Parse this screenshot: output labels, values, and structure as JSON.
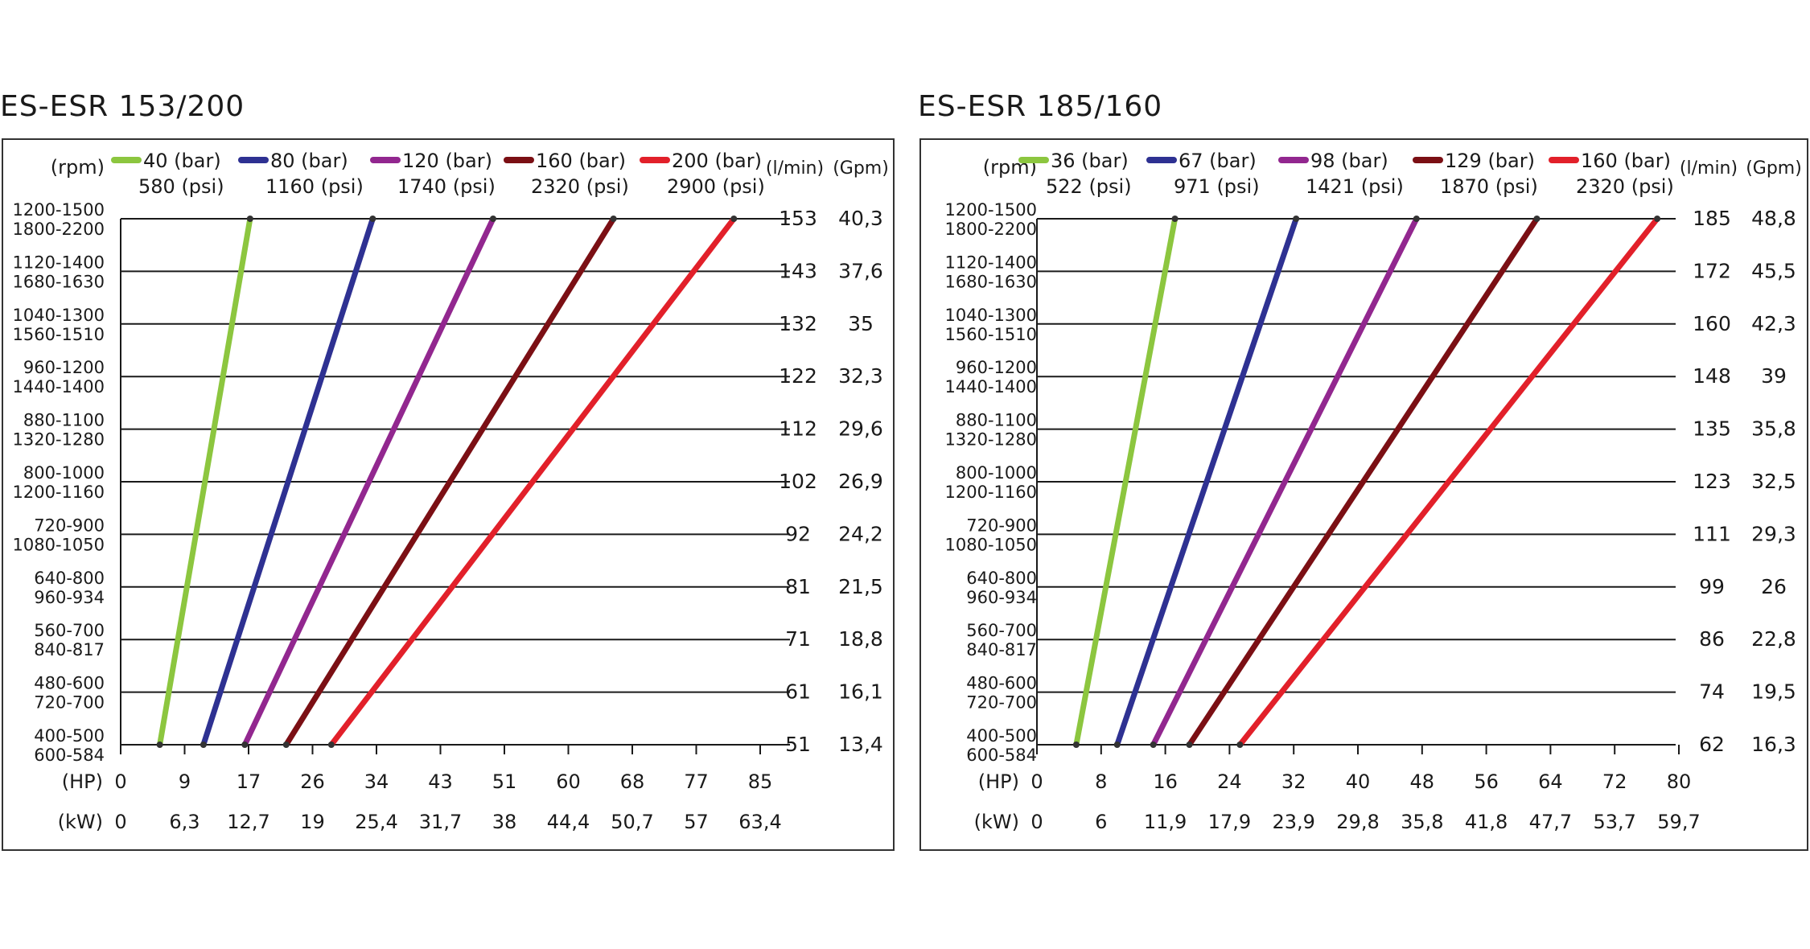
{
  "chart_data": [
    {
      "type": "line",
      "title": "ES-ESR 153/200",
      "col_headers": {
        "rpm": "(rpm)",
        "lpm": "(l/min)",
        "gpm": "(Gpm)",
        "hp": "(HP)",
        "kw": "(kW)"
      },
      "rpm_labels": [
        [
          "400-500",
          "600-584"
        ],
        [
          "480-600",
          "720-700"
        ],
        [
          "560-700",
          "840-817"
        ],
        [
          "640-800",
          "960-934"
        ],
        [
          "720-900",
          "1080-1050"
        ],
        [
          "800-1000",
          "1200-1160"
        ],
        [
          "880-1100",
          "1320-1280"
        ],
        [
          "960-1200",
          "1440-1400"
        ],
        [
          "1040-1300",
          "1560-1510"
        ],
        [
          "1120-1400",
          "1680-1630"
        ],
        [
          "1200-1500",
          "1800-2200"
        ]
      ],
      "flow_lpm": [
        "51",
        "61",
        "71",
        "81",
        "92",
        "102",
        "112",
        "122",
        "132",
        "143",
        "153"
      ],
      "flow_gpm": [
        "13,4",
        "16,1",
        "18,8",
        "21,5",
        "24,2",
        "26,9",
        "29,6",
        "32,3",
        "35",
        "37,6",
        "40,3"
      ],
      "hp_ticks": [
        "0",
        "9",
        "17",
        "26",
        "34",
        "43",
        "51",
        "60",
        "68",
        "77",
        "85"
      ],
      "kw_ticks": [
        "0",
        "6,3",
        "12,7",
        "19",
        "25,4",
        "31,7",
        "38",
        "44,4",
        "50,7",
        "57",
        "63,4"
      ],
      "xlim": [
        0,
        85
      ],
      "series": [
        {
          "name": "40 (bar)",
          "sub": "580 (psi)",
          "color": "#8cc63f",
          "x": [
            5.2,
            17.2
          ],
          "y": [
            51,
            153
          ]
        },
        {
          "name": "80 (bar)",
          "sub": "1160 (psi)",
          "color": "#2e3192",
          "x": [
            11.0,
            33.5
          ],
          "y": [
            51,
            153
          ]
        },
        {
          "name": "120 (bar)",
          "sub": "1740 (psi)",
          "color": "#92278f",
          "x": [
            16.5,
            49.5
          ],
          "y": [
            51,
            153
          ]
        },
        {
          "name": "160 (bar)",
          "sub": "2320 (psi)",
          "color": "#7b0f14",
          "x": [
            22.0,
            65.5
          ],
          "y": [
            51,
            153
          ]
        },
        {
          "name": "200 (bar)",
          "sub": "2900 (psi)",
          "color": "#e2202a",
          "x": [
            28.0,
            81.5
          ],
          "y": [
            51,
            153
          ]
        }
      ]
    },
    {
      "type": "line",
      "title": "ES-ESR 185/160",
      "col_headers": {
        "rpm": "(rpm)",
        "lpm": "(l/min)",
        "gpm": "(Gpm)",
        "hp": "(HP)",
        "kw": "(kW)"
      },
      "rpm_labels": [
        [
          "400-500",
          "600-584"
        ],
        [
          "480-600",
          "720-700"
        ],
        [
          "560-700",
          "840-817"
        ],
        [
          "640-800",
          "960-934"
        ],
        [
          "720-900",
          "1080-1050"
        ],
        [
          "800-1000",
          "1200-1160"
        ],
        [
          "880-1100",
          "1320-1280"
        ],
        [
          "960-1200",
          "1440-1400"
        ],
        [
          "1040-1300",
          "1560-1510"
        ],
        [
          "1120-1400",
          "1680-1630"
        ],
        [
          "1200-1500",
          "1800-2200"
        ]
      ],
      "flow_lpm": [
        "62",
        "74",
        "86",
        "99",
        "111",
        "123",
        "135",
        "148",
        "160",
        "172",
        "185"
      ],
      "flow_gpm": [
        "16,3",
        "19,5",
        "22,8",
        "26",
        "29,3",
        "32,5",
        "35,8",
        "39",
        "42,3",
        "45,5",
        "48,8"
      ],
      "hp_ticks": [
        "0",
        "8",
        "16",
        "24",
        "32",
        "40",
        "48",
        "56",
        "64",
        "72",
        "80"
      ],
      "kw_ticks": [
        "0",
        "6",
        "11,9",
        "17,9",
        "23,9",
        "29,8",
        "35,8",
        "41,8",
        "47,7",
        "53,7",
        "59,7"
      ],
      "xlim": [
        0,
        80
      ],
      "series": [
        {
          "name": "36 (bar)",
          "sub": "522 (psi)",
          "color": "#8cc63f",
          "x": [
            4.9,
            17.2
          ],
          "y": [
            62,
            185
          ]
        },
        {
          "name": "67 (bar)",
          "sub": "971 (psi)",
          "color": "#2e3192",
          "x": [
            10.0,
            32.3
          ],
          "y": [
            62,
            185
          ]
        },
        {
          "name": "98 (bar)",
          "sub": "1421 (psi)",
          "color": "#92278f",
          "x": [
            14.5,
            47.3
          ],
          "y": [
            62,
            185
          ]
        },
        {
          "name": "129 (bar)",
          "sub": "1870 (psi)",
          "color": "#7b0f14",
          "x": [
            19.0,
            62.3
          ],
          "y": [
            62,
            185
          ]
        },
        {
          "name": "160 (bar)",
          "sub": "2320 (psi)",
          "color": "#e2202a",
          "x": [
            25.3,
            77.3
          ],
          "y": [
            62,
            185
          ]
        }
      ]
    }
  ]
}
